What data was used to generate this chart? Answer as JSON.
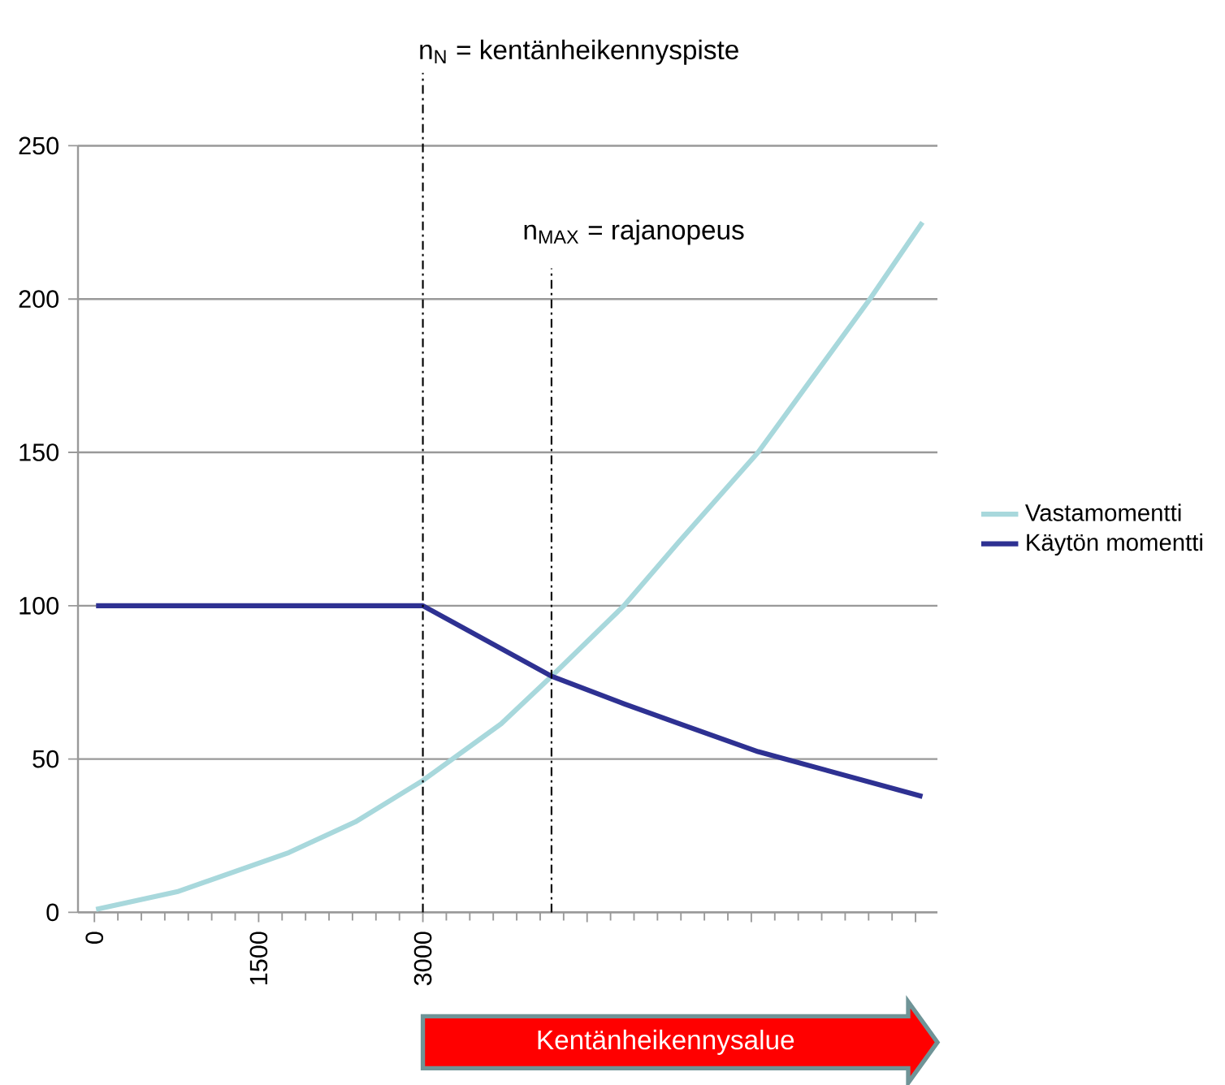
{
  "chart_data": {
    "type": "line",
    "x": [
      15,
      755,
      1776,
      2383,
      3000,
      3715,
      4175,
      4837,
      5343,
      6062,
      7083,
      7563
    ],
    "series": [
      {
        "name": "Vastamomentti",
        "color": "#a8d8dc",
        "values": [
          1,
          6.7,
          19.5,
          29.5,
          43,
          61.5,
          77,
          100,
          121,
          150,
          200,
          225
        ]
      },
      {
        "name": "Käytön momentti",
        "color": "#2e3192",
        "x": [
          15,
          3000,
          4175,
          4837,
          5343,
          6062,
          7563
        ],
        "values": [
          100,
          100,
          77,
          68,
          61.5,
          52.4,
          37.8
        ]
      }
    ],
    "xlim": [
      -150,
      7700
    ],
    "xticks": [
      0,
      1500,
      3000,
      {
        "value": 4500,
        "label": null
      },
      {
        "value": 6000,
        "label": null
      },
      {
        "value": 7500,
        "label": null
      }
    ],
    "ylim": [
      0,
      250
    ],
    "yticks": [
      0,
      50,
      100,
      150,
      200,
      250
    ],
    "grid": "y",
    "legend": "right",
    "ref_lines": [
      {
        "axis": "x",
        "value": 3000,
        "label": "n$_{N}$ = kentänheikennyspiste",
        "line_style": "dashdot"
      },
      {
        "axis": "x",
        "value": 4175,
        "label": "n$_{MAX}$ = rajanopeus",
        "line_style": "dashdot"
      }
    ],
    "annotations": [
      "Kentänheikennysalue"
    ]
  }
}
